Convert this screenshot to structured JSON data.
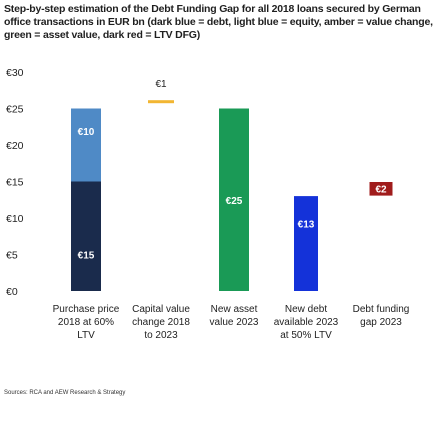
{
  "title": "Step-by-step estimation of the Debt Funding Gap for all 2018 loans secured by German office transactions in EUR bn (dark blue = debt, light blue = equity, amber = value change, green = asset value, dark red = LTV DFG)",
  "source": "Sources: RCA and AEW Research & Strategy",
  "chart_data": {
    "type": "bar",
    "subtype": "waterfall",
    "ylim": [
      0,
      30
    ],
    "yticks": [
      {
        "value": 0,
        "label": "€0"
      },
      {
        "value": 5,
        "label": "€5"
      },
      {
        "value": 10,
        "label": "€10"
      },
      {
        "value": 15,
        "label": "€15"
      },
      {
        "value": 20,
        "label": "€20"
      },
      {
        "value": 25,
        "label": "€25"
      },
      {
        "value": 30,
        "label": "€30"
      }
    ],
    "grid": false,
    "categories": [
      [
        "Purchase price",
        "2018 at 60%",
        "LTV"
      ],
      [
        "Capital value",
        "change 2018",
        "to 2023"
      ],
      [
        "New asset",
        "value 2023"
      ],
      [
        "New debt",
        "available 2023",
        "at 50% LTV"
      ],
      [
        "Debt funding",
        "gap 2023"
      ]
    ],
    "segments": [
      {
        "category": 0,
        "kind": "debt",
        "base": 0,
        "value": 15,
        "label": "€15",
        "color": "#1a2b4c"
      },
      {
        "category": 0,
        "kind": "equity",
        "base": 15,
        "value": 10,
        "label": "€10",
        "color": "#4f8ac6"
      },
      {
        "category": 1,
        "kind": "value change",
        "base": 25,
        "value": 1,
        "label": "€1",
        "color": "#f2b632"
      },
      {
        "category": 2,
        "kind": "asset value",
        "base": 0,
        "value": 25,
        "label": "€25",
        "color": "#1a9a56"
      },
      {
        "category": 3,
        "kind": "debt",
        "base": 0,
        "value": 13,
        "label": "€13",
        "color": "#1432d9"
      },
      {
        "category": 4,
        "kind": "LTV DFG",
        "base": 13,
        "value": 2,
        "label": "€2",
        "color": "#a01c1c"
      }
    ]
  }
}
